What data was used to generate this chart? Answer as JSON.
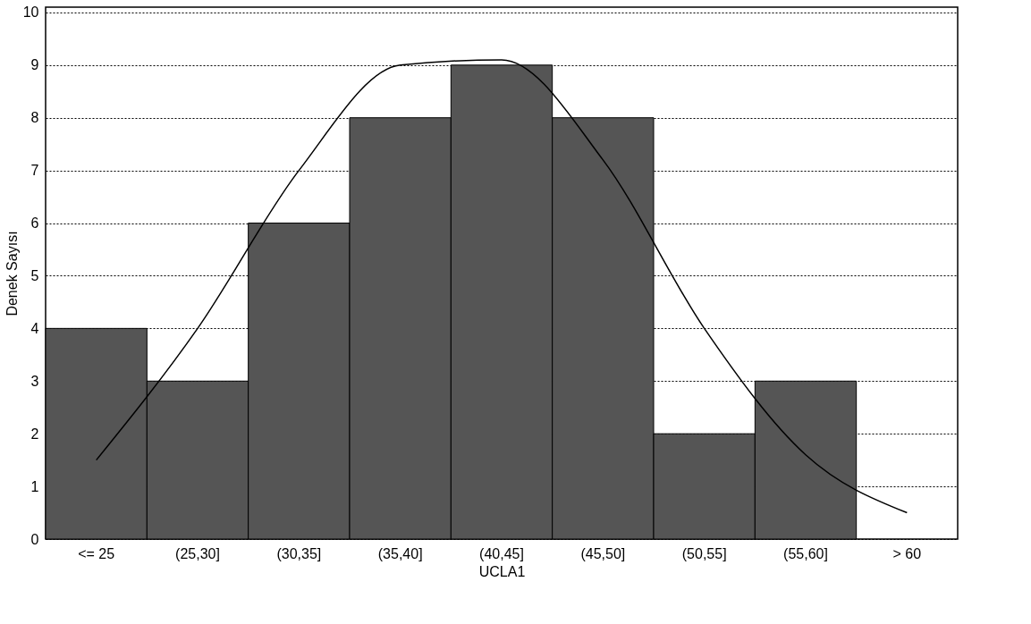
{
  "chart_data": {
    "type": "bar",
    "xlabel": "UCLA1",
    "ylabel": "Denek Sayısı",
    "categories": [
      "<= 25",
      "(25,30]",
      "(30,35]",
      "(35,40]",
      "(40,45]",
      "(45,50]",
      "(50,55]",
      "(55,60]",
      "> 60"
    ],
    "values": [
      4,
      3,
      6,
      8,
      9,
      8,
      2,
      3,
      0
    ],
    "color": "#555555",
    "ylim": [
      0,
      10.1
    ],
    "yticks": [
      0,
      1,
      2,
      3,
      4,
      5,
      6,
      7,
      8,
      9,
      10
    ],
    "grid": "y",
    "series": [
      {
        "type": "line",
        "color": "#000000",
        "values": [
          1.5,
          4.0,
          7.0,
          9.0,
          9.1,
          7.2,
          4.0,
          1.6,
          0.5
        ]
      }
    ]
  }
}
